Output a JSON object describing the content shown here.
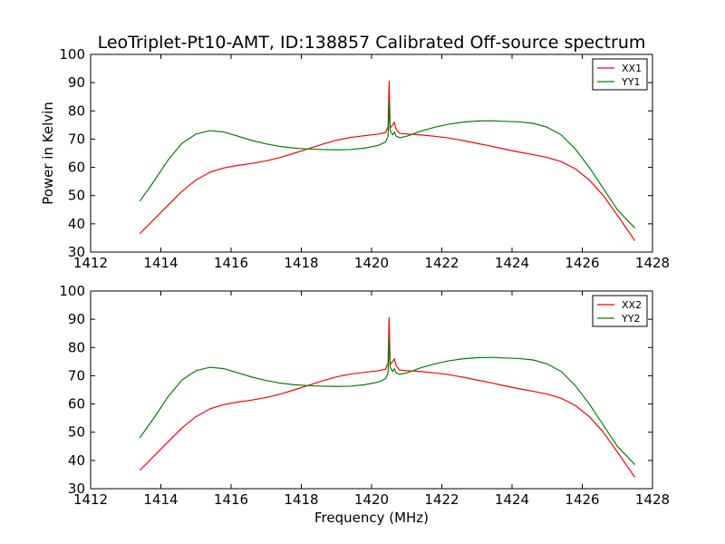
{
  "figure": {
    "title": "LeoTriplet-Pt10-AMT, ID:138857 Calibrated Off-source spectrum",
    "xlabel": "Frequency (MHz)",
    "ylabel": "Power in Kelvin"
  },
  "colors": {
    "red_series": "#ff0000",
    "green_series": "#008000"
  },
  "chart_data": [
    {
      "type": "line",
      "ylabel": "Power in Kelvin",
      "xlabel": "",
      "xlim": [
        1412,
        1428
      ],
      "ylim": [
        30,
        100
      ],
      "xticks": [
        "1412",
        "1414",
        "1416",
        "1418",
        "1420",
        "1422",
        "1424",
        "1426",
        "1428"
      ],
      "yticks": [
        "30",
        "40",
        "50",
        "60",
        "70",
        "80",
        "90",
        "100"
      ],
      "legend_position": "top-right",
      "series": [
        {
          "name": "XX1",
          "color": "#ff0000",
          "x": [
            1413.4,
            1413.8,
            1414.2,
            1414.6,
            1415.0,
            1415.4,
            1415.8,
            1416.2,
            1416.6,
            1417.0,
            1417.4,
            1417.8,
            1418.2,
            1418.6,
            1419.0,
            1419.4,
            1419.8,
            1420.2,
            1420.4,
            1420.47,
            1420.5,
            1420.53,
            1420.6,
            1420.65,
            1420.7,
            1420.8,
            1421.0,
            1421.4,
            1421.8,
            1422.2,
            1422.6,
            1423.0,
            1423.4,
            1423.8,
            1424.2,
            1424.6,
            1425.0,
            1425.4,
            1425.8,
            1426.2,
            1426.6,
            1427.0,
            1427.5
          ],
          "y": [
            36.5,
            41.5,
            46.5,
            51.5,
            55.5,
            58.3,
            59.8,
            60.7,
            61.4,
            62.3,
            63.5,
            65.0,
            66.6,
            68.2,
            69.6,
            70.6,
            71.2,
            71.8,
            72.3,
            74.5,
            90.5,
            74.0,
            75.0,
            76.0,
            73.5,
            72.0,
            71.8,
            71.5,
            71.0,
            70.4,
            69.5,
            68.5,
            67.5,
            66.4,
            65.4,
            64.5,
            63.5,
            62.0,
            59.5,
            55.5,
            50.0,
            43.0,
            34.0
          ]
        },
        {
          "name": "YY1",
          "color": "#008000",
          "x": [
            1413.4,
            1413.8,
            1414.2,
            1414.6,
            1415.0,
            1415.4,
            1415.8,
            1416.2,
            1416.6,
            1417.0,
            1417.4,
            1417.8,
            1418.2,
            1418.6,
            1419.0,
            1419.4,
            1419.8,
            1420.2,
            1420.4,
            1420.47,
            1420.5,
            1420.53,
            1420.6,
            1420.65,
            1420.7,
            1420.8,
            1421.0,
            1421.4,
            1421.8,
            1422.2,
            1422.6,
            1423.0,
            1423.4,
            1423.8,
            1424.2,
            1424.6,
            1425.0,
            1425.4,
            1425.8,
            1426.2,
            1426.6,
            1427.0,
            1427.5
          ],
          "y": [
            48.0,
            55.0,
            62.5,
            68.5,
            71.8,
            73.0,
            72.5,
            71.0,
            69.5,
            68.3,
            67.4,
            66.8,
            66.5,
            66.3,
            66.2,
            66.3,
            66.8,
            67.8,
            69.0,
            71.0,
            83.5,
            73.0,
            71.5,
            72.5,
            71.0,
            70.5,
            71.0,
            72.8,
            74.2,
            75.3,
            76.0,
            76.4,
            76.5,
            76.3,
            76.1,
            75.6,
            74.2,
            71.5,
            66.5,
            60.0,
            52.5,
            45.0,
            38.5
          ]
        }
      ]
    },
    {
      "type": "line",
      "ylabel": "",
      "xlabel": "Frequency (MHz)",
      "xlim": [
        1412,
        1428
      ],
      "ylim": [
        30,
        100
      ],
      "xticks": [
        "1412",
        "1414",
        "1416",
        "1418",
        "1420",
        "1422",
        "1424",
        "1426",
        "1428"
      ],
      "yticks": [
        "30",
        "40",
        "50",
        "60",
        "70",
        "80",
        "90",
        "100"
      ],
      "legend_position": "top-right",
      "series": [
        {
          "name": "XX2",
          "color": "#ff0000",
          "x": [
            1413.4,
            1413.8,
            1414.2,
            1414.6,
            1415.0,
            1415.4,
            1415.8,
            1416.2,
            1416.6,
            1417.0,
            1417.4,
            1417.8,
            1418.2,
            1418.6,
            1419.0,
            1419.4,
            1419.8,
            1420.2,
            1420.4,
            1420.47,
            1420.5,
            1420.53,
            1420.6,
            1420.65,
            1420.7,
            1420.8,
            1421.0,
            1421.4,
            1421.8,
            1422.2,
            1422.6,
            1423.0,
            1423.4,
            1423.8,
            1424.2,
            1424.6,
            1425.0,
            1425.4,
            1425.8,
            1426.2,
            1426.6,
            1427.0,
            1427.5
          ],
          "y": [
            36.5,
            41.5,
            46.5,
            51.5,
            55.5,
            58.3,
            59.8,
            60.7,
            61.4,
            62.3,
            63.5,
            65.0,
            66.6,
            68.2,
            69.6,
            70.6,
            71.2,
            71.8,
            72.3,
            74.5,
            90.5,
            74.0,
            75.0,
            76.0,
            73.5,
            72.0,
            71.8,
            71.5,
            71.0,
            70.4,
            69.5,
            68.5,
            67.5,
            66.4,
            65.4,
            64.5,
            63.5,
            62.0,
            59.5,
            55.5,
            50.0,
            43.0,
            34.0
          ]
        },
        {
          "name": "YY2",
          "color": "#008000",
          "x": [
            1413.4,
            1413.8,
            1414.2,
            1414.6,
            1415.0,
            1415.4,
            1415.8,
            1416.2,
            1416.6,
            1417.0,
            1417.4,
            1417.8,
            1418.2,
            1418.6,
            1419.0,
            1419.4,
            1419.8,
            1420.2,
            1420.4,
            1420.47,
            1420.5,
            1420.53,
            1420.6,
            1420.65,
            1420.7,
            1420.8,
            1421.0,
            1421.4,
            1421.8,
            1422.2,
            1422.6,
            1423.0,
            1423.4,
            1423.8,
            1424.2,
            1424.6,
            1425.0,
            1425.4,
            1425.8,
            1426.2,
            1426.6,
            1427.0,
            1427.5
          ],
          "y": [
            48.0,
            55.0,
            62.5,
            68.5,
            71.8,
            73.0,
            72.5,
            71.0,
            69.5,
            68.3,
            67.4,
            66.8,
            66.5,
            66.3,
            66.2,
            66.3,
            66.8,
            67.8,
            69.0,
            71.0,
            83.5,
            73.0,
            71.5,
            72.5,
            71.0,
            70.5,
            71.0,
            72.8,
            74.2,
            75.3,
            76.0,
            76.4,
            76.5,
            76.3,
            76.1,
            75.6,
            74.2,
            71.5,
            66.5,
            60.0,
            52.5,
            45.0,
            38.5
          ]
        }
      ]
    }
  ]
}
